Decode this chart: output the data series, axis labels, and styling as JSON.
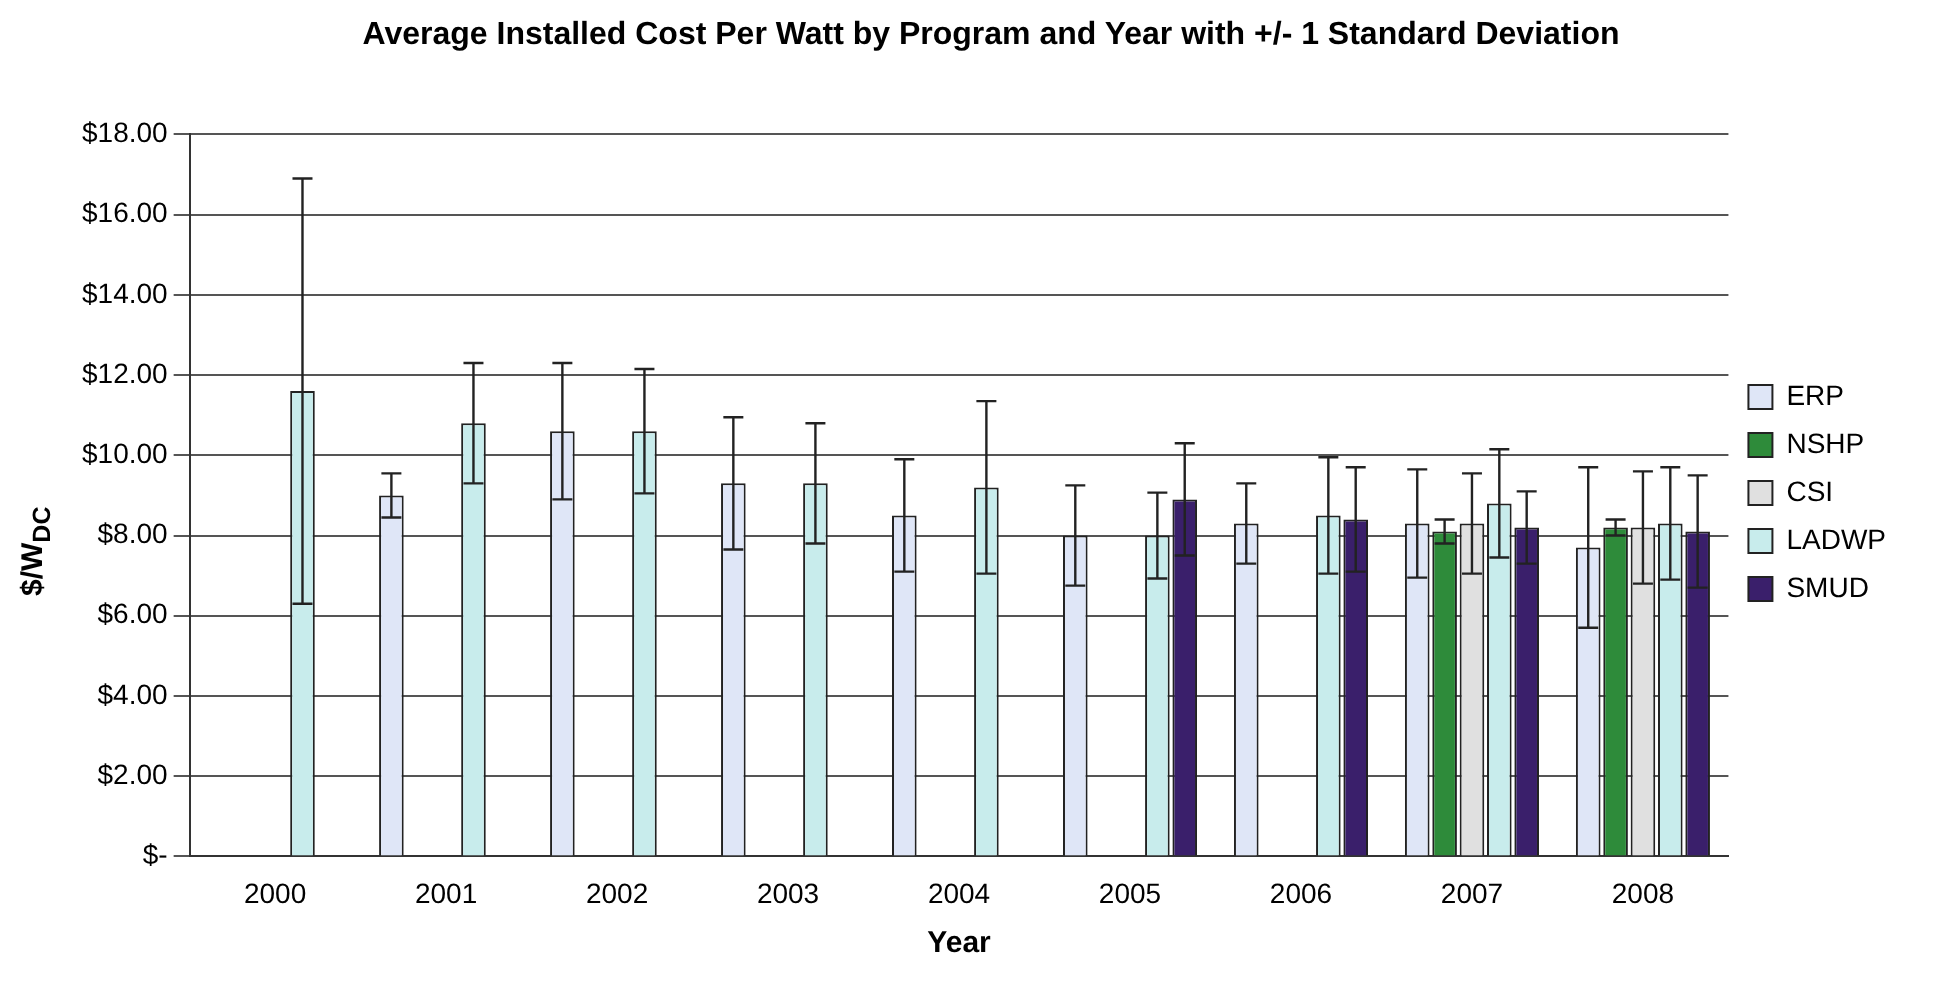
{
  "chart_data": {
    "type": "bar",
    "title": "Average Installed Cost Per Watt by Program and Year with +/- 1 Standard Deviation",
    "xlabel": "Year",
    "ylabel": "$/W$_{DC}$",
    "categories": [
      "2000",
      "2001",
      "2002",
      "2003",
      "2004",
      "2005",
      "2006",
      "2007",
      "2008"
    ],
    "series": [
      {
        "name": "ERP",
        "color": "#dfe6f7",
        "values": [
          null,
          9.0,
          10.6,
          9.3,
          8.5,
          8.0,
          8.3,
          8.3,
          7.7
        ],
        "errors": [
          null,
          0.55,
          1.7,
          1.65,
          1.4,
          1.25,
          1.0,
          1.35,
          2.0
        ]
      },
      {
        "name": "NSHP",
        "color": "#2e8b3a",
        "values": [
          null,
          null,
          null,
          null,
          null,
          null,
          null,
          8.1,
          8.2
        ],
        "errors": [
          null,
          null,
          null,
          null,
          null,
          null,
          null,
          0.3,
          0.2
        ]
      },
      {
        "name": "CSI",
        "color": "#e0e0e0",
        "values": [
          null,
          null,
          null,
          null,
          null,
          null,
          null,
          8.3,
          8.2
        ],
        "errors": [
          null,
          null,
          null,
          null,
          null,
          null,
          null,
          1.25,
          1.4
        ]
      },
      {
        "name": "LADWP",
        "color": "#c8ecec",
        "values": [
          11.6,
          10.8,
          10.6,
          9.3,
          9.2,
          8.0,
          8.5,
          8.8,
          8.3
        ],
        "errors": [
          5.3,
          1.5,
          1.55,
          1.5,
          2.15,
          1.07,
          1.45,
          1.35,
          1.4
        ]
      },
      {
        "name": "SMUD",
        "color": "#3a1f6b",
        "values": [
          null,
          null,
          null,
          null,
          null,
          8.9,
          8.4,
          8.2,
          8.1
        ],
        "errors": [
          null,
          null,
          null,
          null,
          null,
          1.4,
          1.3,
          0.9,
          1.4
        ]
      }
    ],
    "ylim": [
      0,
      18
    ],
    "yticks": [
      {
        "value": 0,
        "label": "$-"
      },
      {
        "value": 2,
        "label": "$2.00"
      },
      {
        "value": 4,
        "label": "$4.00"
      },
      {
        "value": 6,
        "label": "$6.00"
      },
      {
        "value": 8,
        "label": "$8.00"
      },
      {
        "value": 10,
        "label": "$10.00"
      },
      {
        "value": 12,
        "label": "$12.00"
      },
      {
        "value": 14,
        "label": "$14.00"
      },
      {
        "value": 16,
        "label": "$16.00"
      },
      {
        "value": 18,
        "label": "$18.00"
      }
    ],
    "grid": "y",
    "legend": "right"
  }
}
